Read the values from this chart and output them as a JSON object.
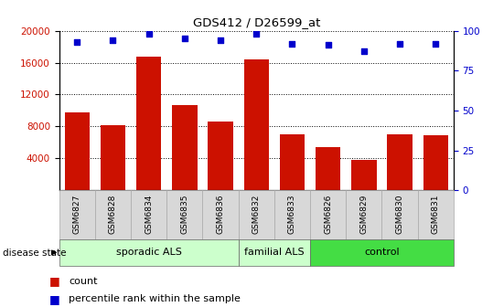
{
  "title": "GDS412 / D26599_at",
  "samples": [
    "GSM6827",
    "GSM6828",
    "GSM6834",
    "GSM6835",
    "GSM6836",
    "GSM6832",
    "GSM6833",
    "GSM6826",
    "GSM6829",
    "GSM6830",
    "GSM6831"
  ],
  "counts": [
    9800,
    8200,
    16800,
    10700,
    8600,
    16400,
    7000,
    5400,
    3800,
    7000,
    6900
  ],
  "percentiles": [
    93,
    94,
    98,
    95,
    94,
    98,
    92,
    91,
    87,
    92,
    92
  ],
  "group_configs": [
    {
      "label": "sporadic ALS",
      "start": 0,
      "end": 5,
      "color": "#ccffcc"
    },
    {
      "label": "familial ALS",
      "start": 5,
      "end": 7,
      "color": "#ccffcc"
    },
    {
      "label": "control",
      "start": 7,
      "end": 11,
      "color": "#44dd44"
    }
  ],
  "ylim_left": [
    0,
    20000
  ],
  "ylim_right": [
    0,
    100
  ],
  "yticks_left": [
    4000,
    8000,
    12000,
    16000,
    20000
  ],
  "yticks_right": [
    0,
    25,
    50,
    75,
    100
  ],
  "bar_color": "#cc1100",
  "dot_color": "#0000cc",
  "label_count": "count",
  "label_percentile": "percentile rank within the sample",
  "disease_state_label": "disease state"
}
